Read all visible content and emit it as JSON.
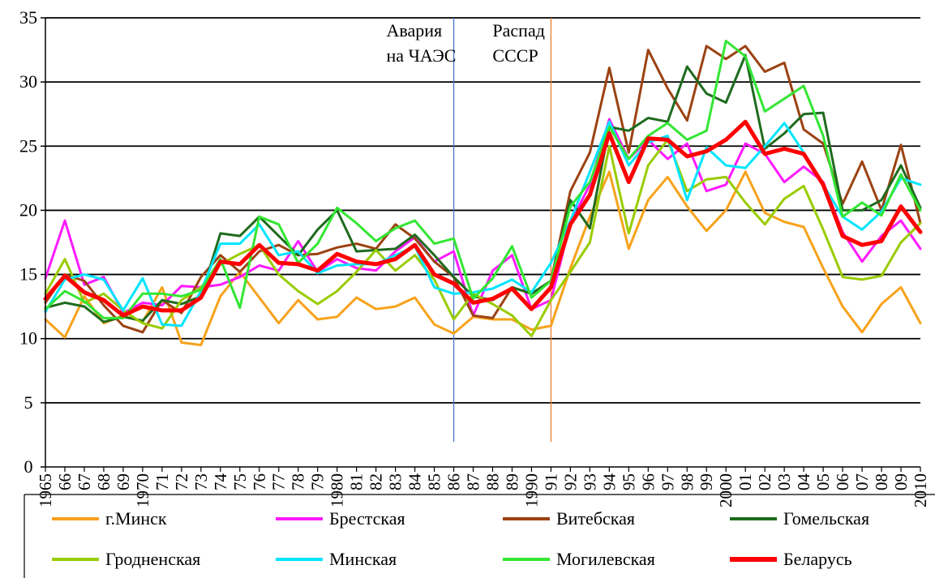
{
  "chart_data": {
    "type": "line",
    "title": "",
    "xlabel": "",
    "ylabel": "",
    "ylim": [
      0,
      35
    ],
    "yticks": [
      0,
      5,
      10,
      15,
      20,
      25,
      30,
      35
    ],
    "grid": "horizontal",
    "legend_placement": "bottom",
    "x": [
      "1965",
      "66",
      "67",
      "68",
      "69",
      "1970",
      "71",
      "72",
      "73",
      "74",
      "75",
      "76",
      "77",
      "78",
      "79",
      "1980",
      "81",
      "82",
      "83",
      "84",
      "85",
      "86",
      "87",
      "88",
      "89",
      "1990",
      "91",
      "92",
      "93",
      "94",
      "95",
      "96",
      "97",
      "98",
      "99",
      "2000",
      "01",
      "02",
      "03",
      "04",
      "05",
      "06",
      "07",
      "08",
      "09",
      "2010"
    ],
    "annotations": [
      {
        "text_line1": "Авария",
        "text_line2": "на ЧАЭС",
        "at": "86",
        "color": "#4472c4"
      },
      {
        "text_line1": "Распад",
        "text_line2": "СССР",
        "at": "91",
        "color": "#f07d2a"
      }
    ],
    "series": [
      {
        "name": "г.Минск",
        "color": "#f7a21b",
        "width": 3,
        "values": [
          11.5,
          10.1,
          13.3,
          11.2,
          11.8,
          11.3,
          14.0,
          9.7,
          9.5,
          13.3,
          15.2,
          13.2,
          11.2,
          13.0,
          11.5,
          11.7,
          13.2,
          12.3,
          12.5,
          13.2,
          11.1,
          10.4,
          11.7,
          11.5,
          11.5,
          10.7,
          11.0,
          15.5,
          19.5,
          23.0,
          17.0,
          20.8,
          22.6,
          20.3,
          18.4,
          20.0,
          23.0,
          19.8,
          19.1,
          18.7,
          15.5,
          12.5,
          10.5,
          12.7,
          14.0,
          11.2
        ]
      },
      {
        "name": "Брестская",
        "color": "#ff1aff",
        "width": 3,
        "values": [
          14.7,
          19.2,
          14.2,
          14.8,
          12.0,
          12.8,
          12.6,
          14.1,
          14.0,
          14.2,
          14.8,
          15.7,
          15.3,
          17.6,
          15.2,
          16.2,
          15.5,
          15.3,
          16.8,
          17.9,
          16.0,
          16.8,
          11.8,
          15.3,
          16.5,
          12.3,
          13.0,
          19.0,
          22.0,
          27.1,
          24.0,
          25.5,
          24.0,
          25.2,
          21.5,
          22.0,
          25.2,
          24.4,
          22.2,
          23.4,
          22.2,
          18.3,
          16.0,
          18.0,
          19.2,
          17.0
        ]
      },
      {
        "name": "Витебская",
        "color": "#9c4212",
        "width": 3,
        "values": [
          12.8,
          15.0,
          14.5,
          12.6,
          11.0,
          10.5,
          13.0,
          12.0,
          14.8,
          16.5,
          15.2,
          16.8,
          17.3,
          16.5,
          16.6,
          17.1,
          17.4,
          17.0,
          18.9,
          17.8,
          16.0,
          14.8,
          11.8,
          11.6,
          14.0,
          13.5,
          14.5,
          21.5,
          24.5,
          31.1,
          24.5,
          32.5,
          29.5,
          27.0,
          32.8,
          31.8,
          32.8,
          30.8,
          31.5,
          26.3,
          25.2,
          20.5,
          23.8,
          20.0,
          25.1,
          19.0
        ]
      },
      {
        "name": "Гомельская",
        "color": "#1e6b1e",
        "width": 3,
        "values": [
          12.4,
          12.8,
          12.5,
          11.3,
          11.7,
          11.4,
          13.0,
          12.7,
          13.3,
          18.2,
          18.0,
          19.5,
          18.0,
          16.5,
          18.5,
          20.0,
          16.8,
          16.9,
          17.0,
          18.1,
          16.5,
          14.8,
          13.3,
          13.0,
          14.0,
          13.5,
          14.5,
          20.8,
          18.6,
          26.5,
          26.2,
          27.2,
          26.9,
          31.2,
          29.1,
          28.4,
          32.1,
          24.8,
          26.0,
          27.5,
          27.6,
          20.0,
          20.0,
          20.8,
          23.5,
          20.2
        ]
      },
      {
        "name": "Гродненская",
        "color": "#99cc00",
        "width": 3,
        "values": [
          13.5,
          16.2,
          12.8,
          13.5,
          12.2,
          11.2,
          10.8,
          13.0,
          14.0,
          15.8,
          16.6,
          17.3,
          15.0,
          13.7,
          12.7,
          13.7,
          15.2,
          16.9,
          15.3,
          16.5,
          14.6,
          11.5,
          13.5,
          12.7,
          11.8,
          10.2,
          13.0,
          15.2,
          17.5,
          25.0,
          18.2,
          23.5,
          25.5,
          21.5,
          22.4,
          22.6,
          20.6,
          18.9,
          20.9,
          21.9,
          18.5,
          14.8,
          14.6,
          14.9,
          17.5,
          19.0
        ]
      },
      {
        "name": "Минская",
        "color": "#00e5ff",
        "width": 3,
        "values": [
          12.1,
          14.6,
          15.0,
          14.6,
          12.2,
          14.7,
          11.1,
          11.0,
          13.7,
          17.4,
          17.4,
          18.9,
          16.5,
          16.8,
          15.1,
          15.7,
          15.8,
          15.8,
          16.5,
          17.2,
          14.0,
          13.5,
          13.6,
          13.9,
          14.6,
          13.6,
          15.9,
          19.2,
          23.0,
          26.9,
          23.5,
          25.3,
          25.8,
          20.8,
          24.9,
          23.5,
          23.3,
          25.0,
          26.8,
          24.5,
          22.0,
          19.5,
          18.5,
          19.9,
          22.5,
          22.0
        ]
      },
      {
        "name": "Могилевская",
        "color": "#33e633",
        "width": 3,
        "values": [
          12.3,
          13.7,
          12.9,
          11.6,
          11.6,
          13.5,
          13.5,
          13.3,
          13.8,
          16.2,
          12.4,
          19.5,
          18.9,
          15.9,
          17.4,
          20.2,
          19.0,
          17.6,
          18.6,
          19.2,
          17.4,
          17.8,
          13.1,
          14.7,
          17.2,
          13.2,
          14.5,
          20.3,
          22.2,
          26.5,
          24.0,
          25.8,
          26.8,
          25.5,
          26.2,
          33.2,
          32.0,
          27.7,
          28.7,
          29.7,
          25.8,
          19.5,
          20.6,
          19.6,
          22.8,
          20.0
        ]
      },
      {
        "name": "Беларусь",
        "color": "#ff0000",
        "width": 5,
        "values": [
          13.1,
          14.9,
          13.6,
          13.0,
          11.8,
          12.5,
          12.2,
          12.2,
          13.2,
          16.0,
          15.8,
          17.3,
          15.9,
          15.8,
          15.3,
          16.6,
          16.0,
          15.8,
          16.2,
          17.3,
          15.0,
          14.3,
          12.8,
          13.1,
          13.9,
          12.3,
          14.0,
          18.9,
          21.2,
          26.0,
          22.2,
          25.6,
          25.5,
          24.2,
          24.6,
          25.5,
          26.9,
          24.4,
          24.8,
          24.4,
          22.0,
          18.0,
          17.3,
          17.6,
          20.3,
          18.3
        ]
      }
    ]
  }
}
